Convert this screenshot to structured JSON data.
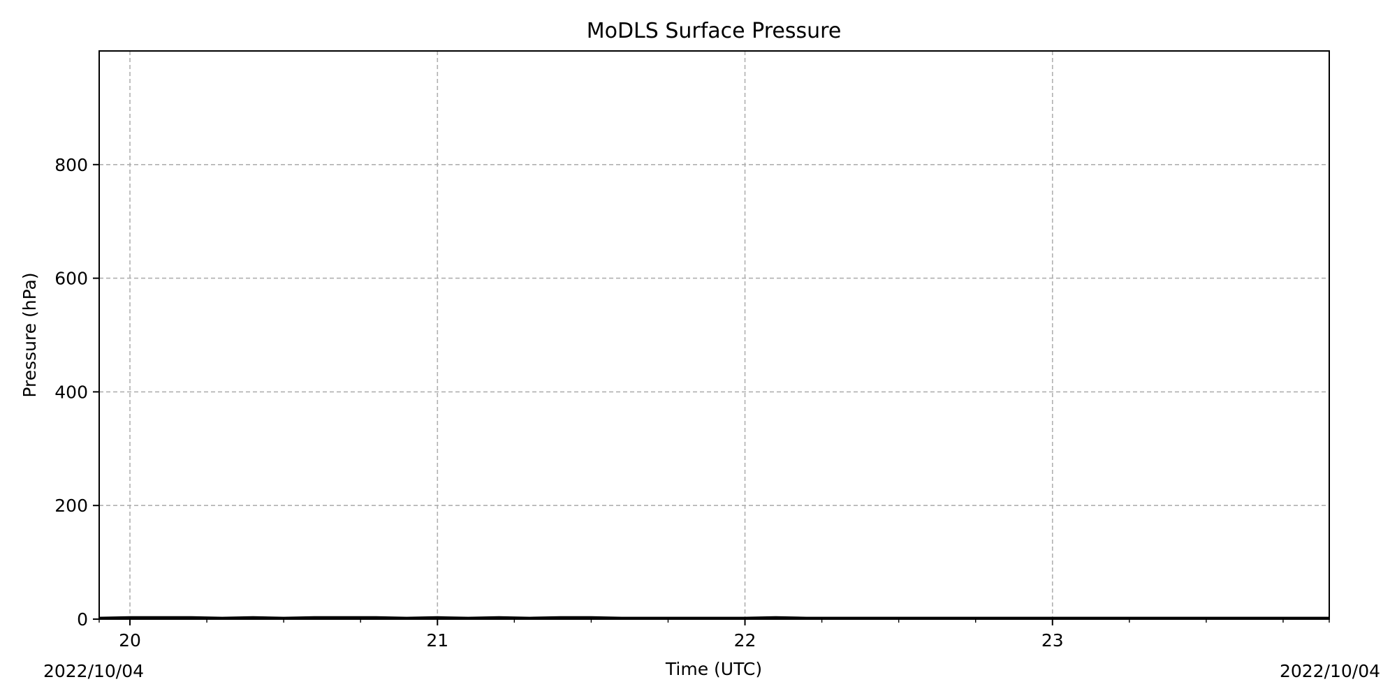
{
  "chart_data": {
    "type": "line",
    "title": "MoDLS Surface Pressure",
    "xlabel": "Time (UTC)",
    "ylabel": "Pressure (hPa)",
    "x_unit": "hour UTC, 2022/10/04",
    "xlim": [
      19.9,
      23.9
    ],
    "ylim": [
      0,
      1000
    ],
    "x_ticks": [
      20,
      21,
      22,
      23
    ],
    "x_tick_labels": [
      "20",
      "21",
      "22",
      "23"
    ],
    "x_minor_ticks": [
      19.9,
      20.25,
      20.5,
      20.75,
      21.25,
      21.5,
      21.75,
      22.25,
      22.5,
      22.75,
      23.25,
      23.5,
      23.75,
      23.9
    ],
    "y_ticks": [
      0,
      200,
      400,
      600,
      800
    ],
    "y_tick_labels": [
      "0",
      "200",
      "400",
      "600",
      "800"
    ],
    "date_label_left": "2022/10/04",
    "date_label_right": "2022/10/04",
    "grid": true,
    "series": [
      {
        "color": "#000000",
        "x": [
          19.9,
          20.0,
          20.1,
          20.2,
          20.3,
          20.4,
          20.5,
          20.6,
          20.7,
          20.8,
          20.9,
          21.0,
          21.1,
          21.2,
          21.3,
          21.4,
          21.5,
          21.6,
          21.7,
          21.8,
          21.9,
          22.0,
          22.1,
          22.2,
          22.3,
          22.4,
          22.5,
          22.6,
          22.7,
          22.8,
          22.9,
          23.0,
          23.1,
          23.2,
          23.3,
          23.4,
          23.5,
          23.6,
          23.7,
          23.8,
          23.9
        ],
        "values": [
          2,
          3,
          3,
          3,
          2,
          3,
          2,
          3,
          3,
          3,
          2,
          3,
          2,
          3,
          2,
          3,
          3,
          2,
          2,
          2,
          2,
          2,
          3,
          2,
          2,
          2,
          2,
          2,
          2,
          2,
          2,
          2,
          2,
          2,
          2,
          2,
          2,
          2,
          2,
          2,
          2
        ]
      }
    ]
  }
}
